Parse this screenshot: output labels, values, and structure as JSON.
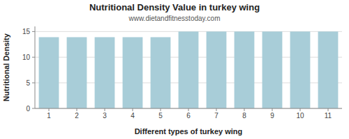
{
  "chart_data": {
    "type": "bar",
    "title": "Nutritional Density Value in turkey wing",
    "subtitle": "www.dietandfitnesstoday.com",
    "xlabel": "Different types of turkey wing",
    "ylabel": "Nutritional Density",
    "categories": [
      1,
      2,
      3,
      4,
      5,
      6,
      7,
      8,
      9,
      10,
      11
    ],
    "values": [
      13.9,
      13.9,
      13.9,
      13.9,
      13.9,
      15.0,
      15.0,
      15.0,
      15.0,
      15.0,
      15.0
    ],
    "color": "#a8cdd8",
    "ylim": [
      0,
      16
    ],
    "yticks": [
      0,
      5,
      10,
      15
    ],
    "grid": true
  }
}
